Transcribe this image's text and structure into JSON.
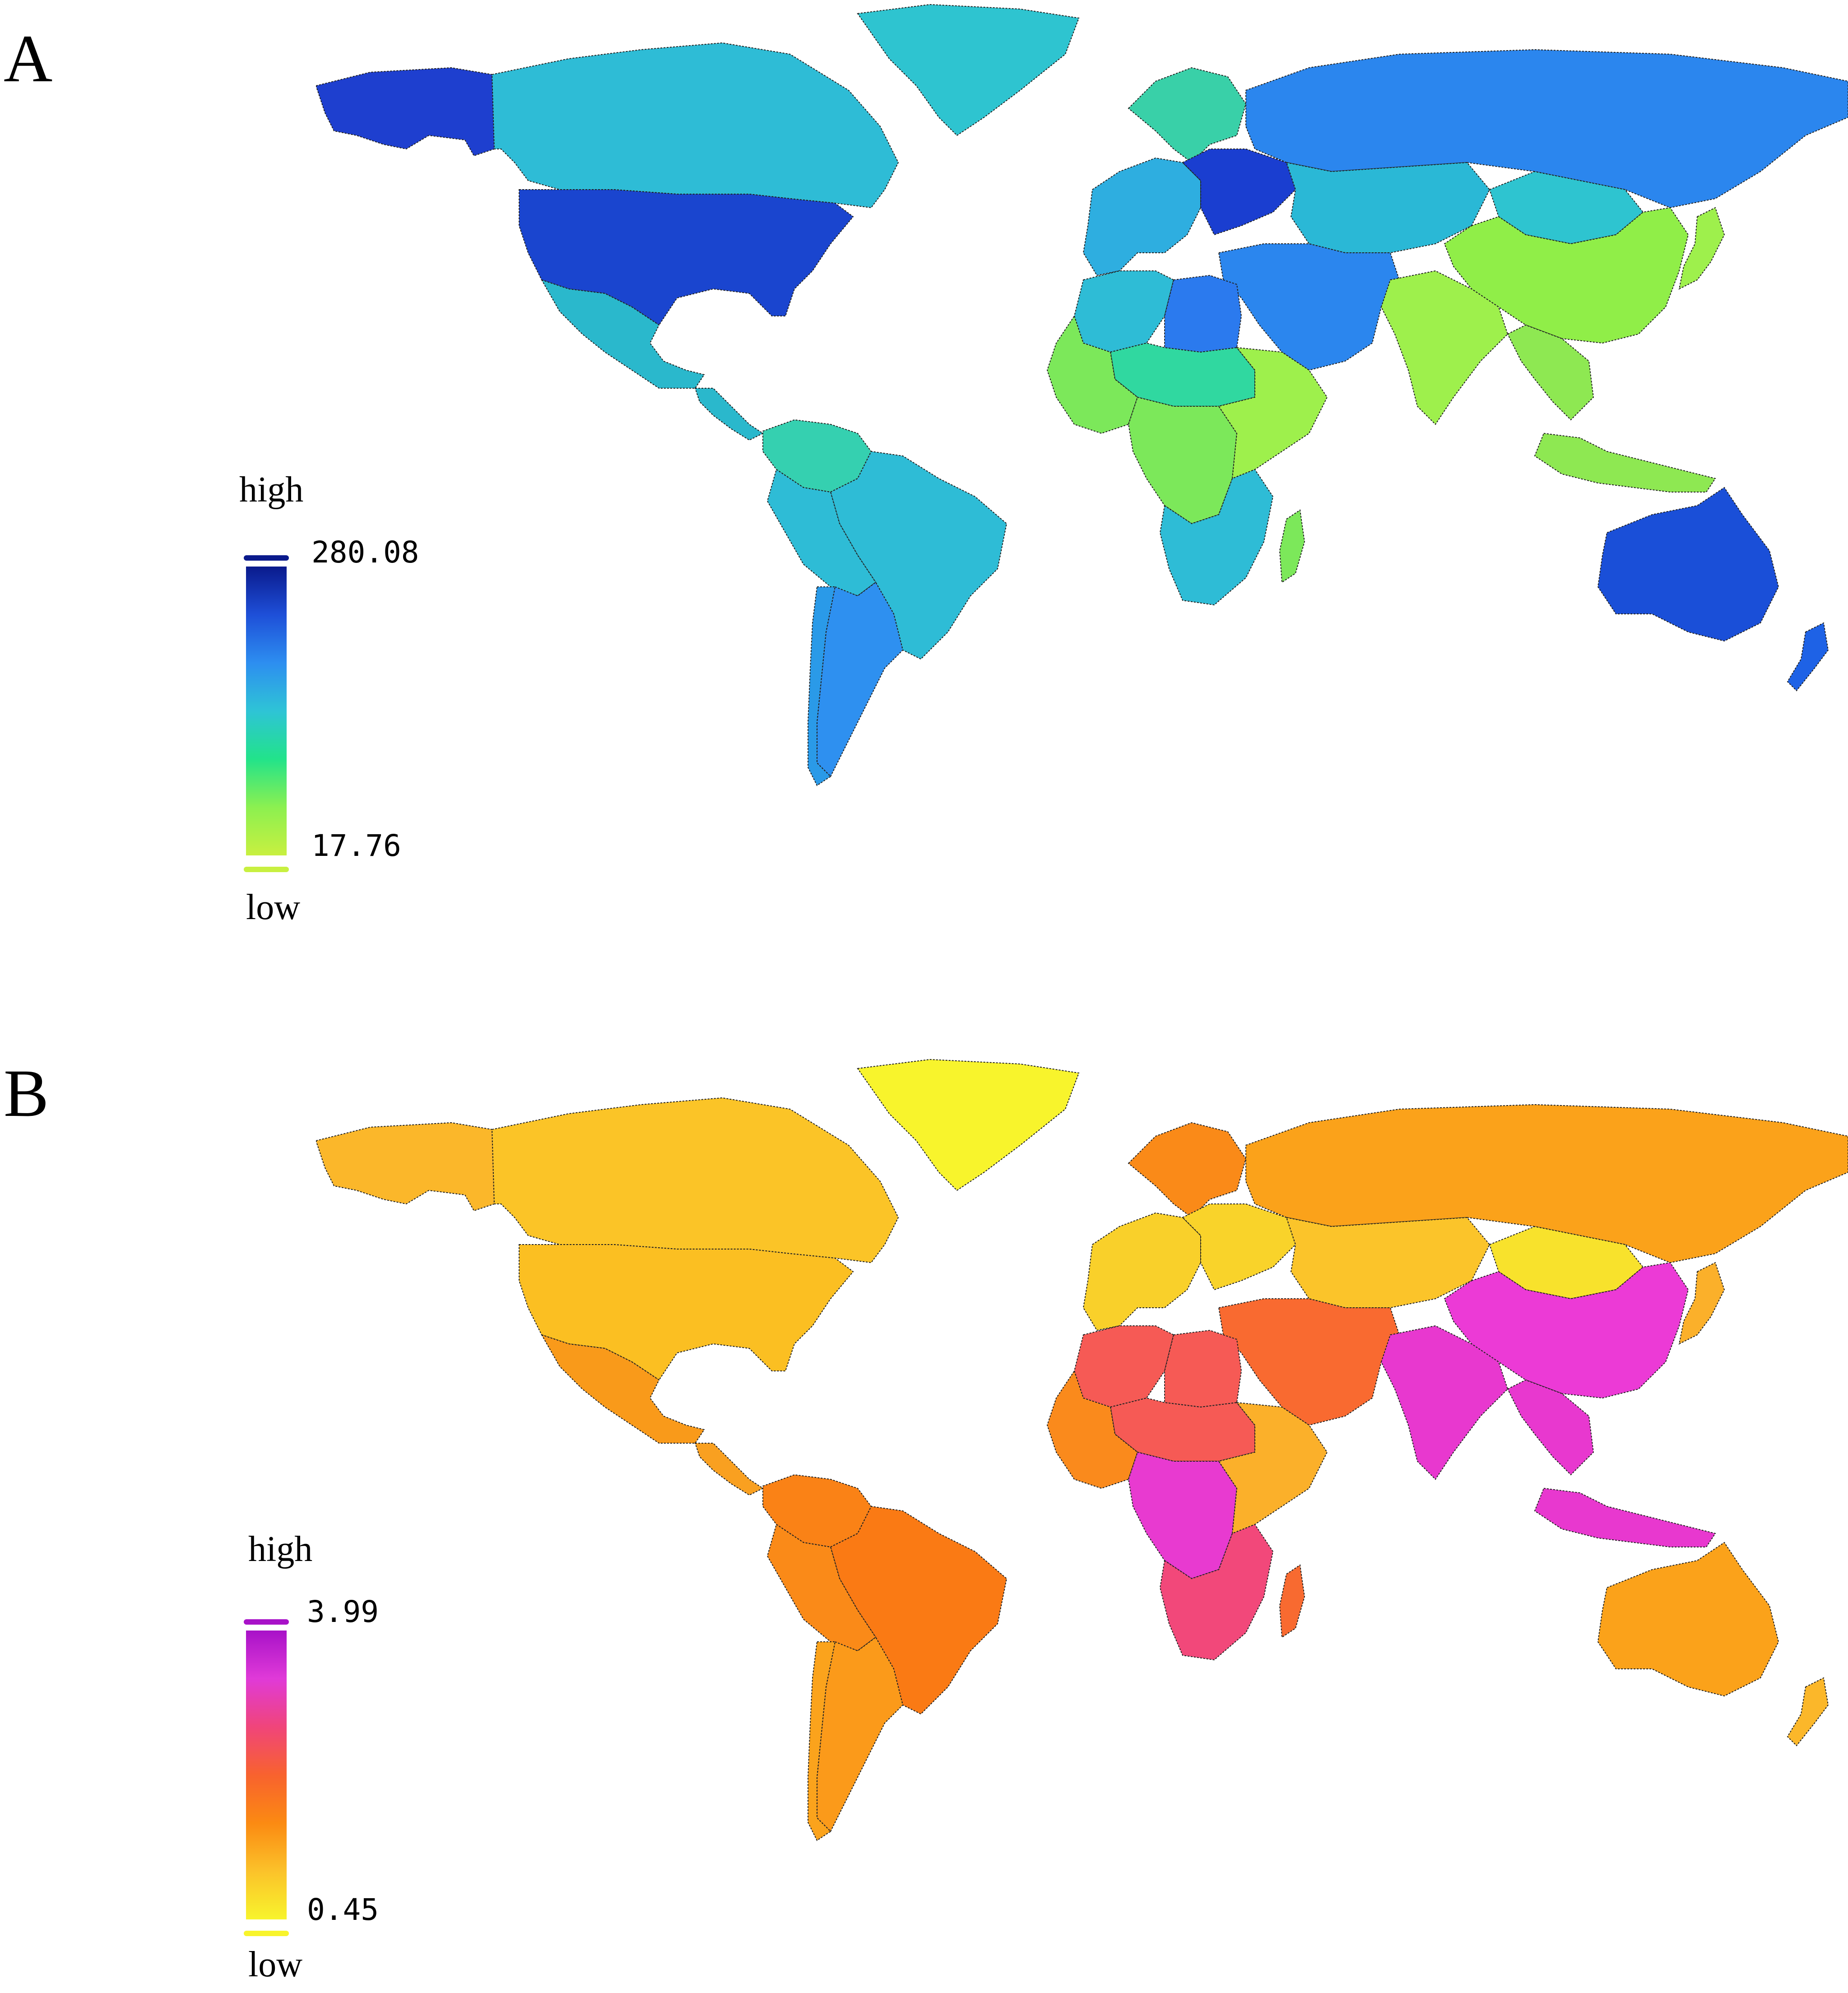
{
  "panels": [
    {
      "letter": "A",
      "legend": {
        "high_label": "high",
        "low_label": "low",
        "max_value": "280.08",
        "min_value": "17.76",
        "gradient": [
          "#0a1a8c",
          "#1e4fd8",
          "#2d8ef0",
          "#2ec4d6",
          "#22e38a",
          "#8cf050",
          "#c8f040"
        ],
        "max_color": "#0a1a8c",
        "min_color": "#c8f040"
      },
      "regions": {
        "alaska": "#1e3fcf",
        "canada": "#2ebcd6",
        "greenland": "#2ec4d0",
        "usa": "#1a45cf",
        "mexico": "#2ab8cc",
        "central_america": "#2ab8cc",
        "colombia_venezuela": "#35d0b0",
        "brazil": "#2ebcd6",
        "peru_bolivia": "#2ebcd6",
        "argentina": "#2e90f0",
        "chile": "#2a9ae8",
        "russia": "#2b86ee",
        "scandinavia": "#39d0a8",
        "western_europe": "#2eaee0",
        "eastern_europe": "#1a3ed0",
        "central_asia": "#2ab8d6",
        "middle_east": "#2b86ee",
        "north_africa": "#2ebcd6",
        "egypt": "#2b7aee",
        "west_africa": "#7ce85a",
        "sahel": "#30d8a0",
        "central_africa": "#7ce85a",
        "east_africa": "#9ef04c",
        "southern_africa": "#2ebcd6",
        "madagascar": "#7ce85a",
        "india": "#9ef04c",
        "china": "#90ee48",
        "mongolia": "#2ec4d0",
        "southeast_asia": "#8ee852",
        "indonesia": "#8ee852",
        "japan": "#9ef04c",
        "australia": "#1a4fd8",
        "new_zealand": "#1e62e6"
      }
    },
    {
      "letter": "B",
      "legend": {
        "high_label": "high",
        "low_label": "low",
        "max_value": "3.99",
        "min_value": "0.45",
        "gradient": [
          "#a812c8",
          "#e03ad8",
          "#f0457a",
          "#f8622e",
          "#fb8a12",
          "#fbc22a",
          "#f8f42c"
        ],
        "max_color": "#a812c8",
        "min_color": "#f8f42c"
      },
      "regions": {
        "alaska": "#fbb72a",
        "canada": "#fbc427",
        "greenland": "#f8f42c",
        "usa": "#fbbf22",
        "mexico": "#f99a1a",
        "central_america": "#f9a020",
        "colombia_venezuela": "#fa8216",
        "brazil": "#fa7a14",
        "peru_bolivia": "#fa8a18",
        "argentina": "#fb9a1a",
        "chile": "#fba31c",
        "russia": "#fba21a",
        "scandinavia": "#fa8a18",
        "western_europe": "#f9d02a",
        "eastern_europe": "#f9d32a",
        "central_asia": "#fbc42a",
        "middle_east": "#f96a30",
        "north_africa": "#f65a55",
        "egypt": "#f65a55",
        "west_africa": "#fa8a1c",
        "sahel": "#f65a55",
        "central_africa": "#e83ad0",
        "east_africa": "#fbb02a",
        "southern_africa": "#f2487a",
        "madagascar": "#f86a30",
        "india": "#e838cf",
        "china": "#ec3ad6",
        "mongolia": "#f8e22c",
        "southeast_asia": "#e838cf",
        "indonesia": "#e838cf",
        "japan": "#fbb02a",
        "australia": "#fba21a",
        "new_zealand": "#fbb72a"
      }
    }
  ]
}
